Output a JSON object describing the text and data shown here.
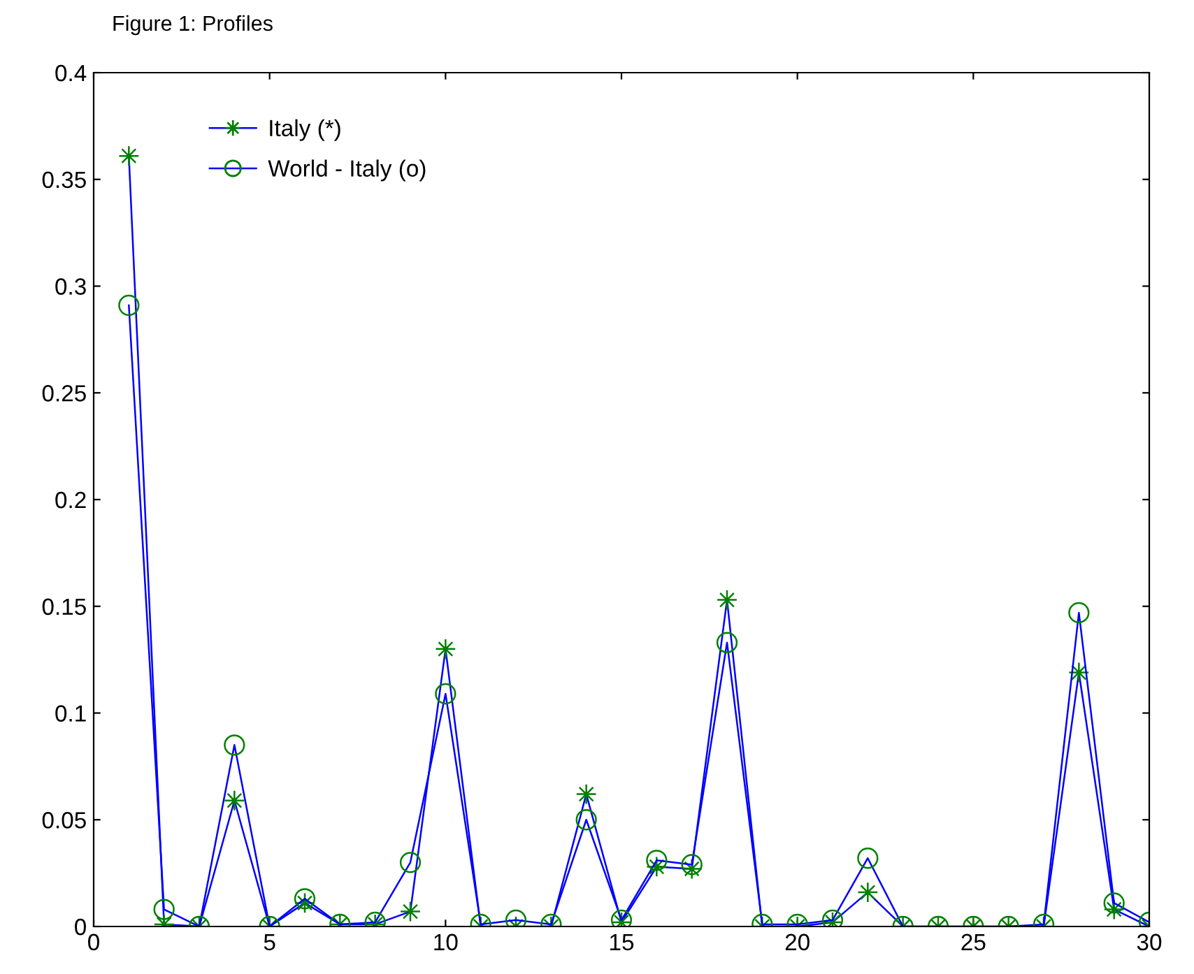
{
  "chart_data": {
    "type": "line",
    "title": "Figure 1: Profiles",
    "x": [
      1,
      2,
      3,
      4,
      5,
      6,
      7,
      8,
      9,
      10,
      11,
      12,
      13,
      14,
      15,
      16,
      17,
      18,
      19,
      20,
      21,
      22,
      23,
      24,
      25,
      26,
      27,
      28,
      29,
      30
    ],
    "series": [
      {
        "name": "Italy (*)",
        "color": "#0000ff",
        "marker": "star",
        "values": [
          0.361,
          0.001,
          0,
          0.059,
          0,
          0.011,
          0.001,
          0.001,
          0.007,
          0.13,
          0,
          0,
          0,
          0.062,
          0.002,
          0.028,
          0.027,
          0.153,
          0,
          0,
          0.002,
          0.016,
          0,
          0,
          0,
          0,
          0,
          0.119,
          0.008,
          0
        ]
      },
      {
        "name": "World - Italy (o)",
        "color": "#0000ff",
        "marker": "circle",
        "values": [
          0.291,
          0.008,
          0,
          0.085,
          0,
          0.013,
          0.001,
          0.002,
          0.03,
          0.109,
          0.001,
          0.003,
          0.001,
          0.05,
          0.003,
          0.031,
          0.029,
          0.133,
          0.001,
          0.001,
          0.003,
          0.032,
          0,
          0,
          0,
          0,
          0.001,
          0.147,
          0.011,
          0.002
        ]
      }
    ],
    "xlim": [
      0,
      30
    ],
    "xticks": [
      0,
      5,
      10,
      15,
      20,
      25,
      30
    ],
    "ylim": [
      0,
      0.4
    ],
    "yticks": [
      0,
      0.05,
      0.1,
      0.15,
      0.2,
      0.25,
      0.3,
      0.35,
      0.4
    ],
    "grid": false,
    "legend": "top left",
    "line_style": "solid"
  }
}
